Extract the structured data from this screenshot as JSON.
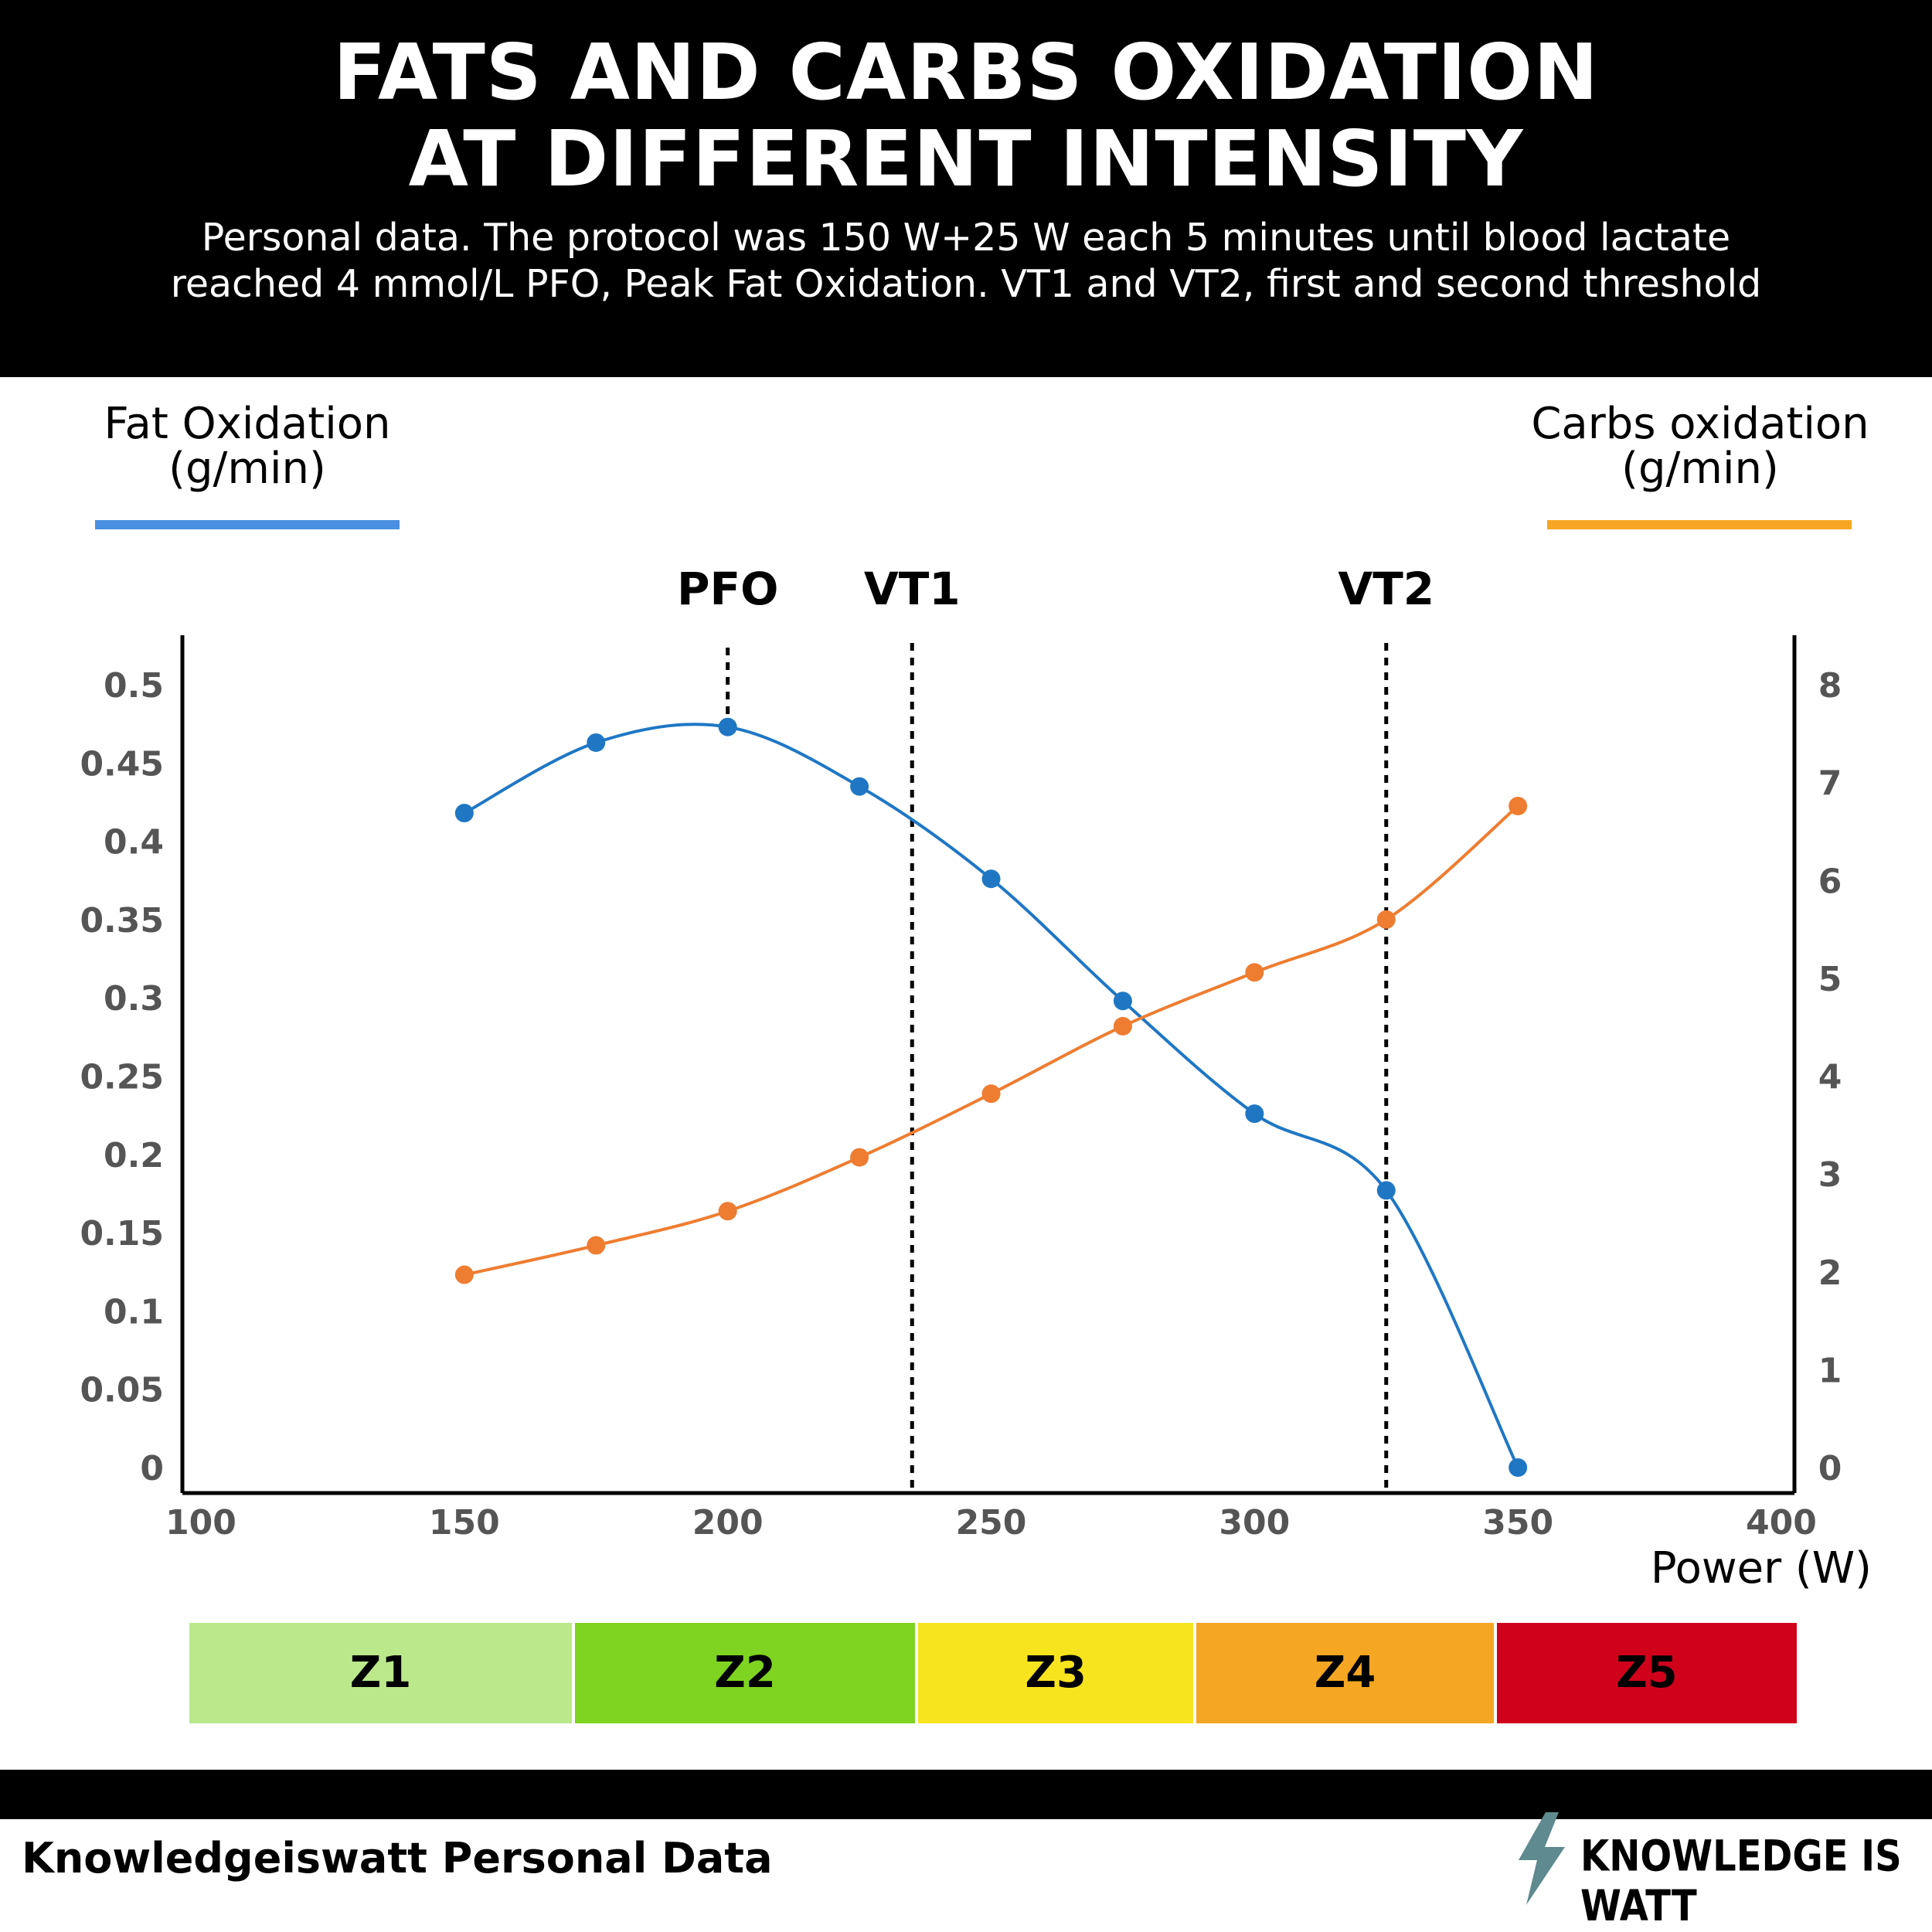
{
  "header": {
    "title_line_1": "FATS AND CARBS OXIDATION",
    "title_line_2": "AT DIFFERENT INTENSITY",
    "subtitle": "Personal data. The protocol was 150 W+25 W each 5 minutes until blood lactate reached 4 mmol/L PFO, Peak Fat Oxidation. VT1 and VT2, first and second threshold"
  },
  "chart_data": {
    "type": "line",
    "xlabel": "Power (W)",
    "xlim": [
      100,
      400
    ],
    "x_ticks": [
      "100",
      "150",
      "200",
      "250",
      "300",
      "350",
      "400"
    ],
    "y_left_label": "Fat Oxidation\n(g/min)",
    "y_left_lim": [
      0,
      0.5
    ],
    "y_left_ticks": [
      "0",
      "0.05",
      "0.1",
      "0.15",
      "0.2",
      "0.25",
      "0.3",
      "0.35",
      "0.4",
      "0.45",
      "0.5"
    ],
    "y_right_label": "Carbs oxidation\n(g/min)",
    "y_right_lim": [
      0,
      8
    ],
    "y_right_ticks": [
      "0",
      "1",
      "2",
      "3",
      "4",
      "5",
      "6",
      "7",
      "8"
    ],
    "series": [
      {
        "name": "Fat Oxidation",
        "axis": "left",
        "color": "#1f77c4",
        "x": [
          150,
          175,
          200,
          225,
          250,
          275,
          300,
          325,
          350
        ],
        "values": [
          0.418,
          0.463,
          0.473,
          0.435,
          0.376,
          0.298,
          0.226,
          0.177,
          0.0
        ]
      },
      {
        "name": "Carbs oxidation",
        "axis": "right",
        "color": "#ee7d31",
        "x": [
          150,
          175,
          200,
          225,
          250,
          275,
          300,
          325,
          350
        ],
        "values": [
          1.97,
          2.27,
          2.62,
          3.17,
          3.82,
          4.51,
          5.06,
          5.6,
          6.76
        ]
      }
    ],
    "markers": [
      {
        "label": "PFO",
        "x": 200,
        "style": "short"
      },
      {
        "label": "VT1",
        "x": 235,
        "style": "full"
      },
      {
        "label": "VT2",
        "x": 325,
        "style": "full"
      }
    ],
    "zones": [
      {
        "label": "Z1",
        "from": 100,
        "to": 172,
        "color": "#bbe88b"
      },
      {
        "label": "Z2",
        "from": 172,
        "to": 236,
        "color": "#7fd321"
      },
      {
        "label": "Z3",
        "from": 236,
        "to": 288,
        "color": "#f7e41f"
      },
      {
        "label": "Z4",
        "from": 288,
        "to": 344,
        "color": "#f5a623"
      },
      {
        "label": "Z5",
        "from": 344,
        "to": 400,
        "color": "#d0021b"
      }
    ],
    "legend_colors": {
      "fat": "#4a90e2",
      "carbs": "#f5a623"
    }
  },
  "footer": {
    "left_text": "Knowledgeiswatt Personal Data",
    "brand_text": "KNOWLEDGE IS WATT",
    "brand_icon": "lightning-bolt-icon",
    "brand_icon_color": "#5f8a8f"
  }
}
